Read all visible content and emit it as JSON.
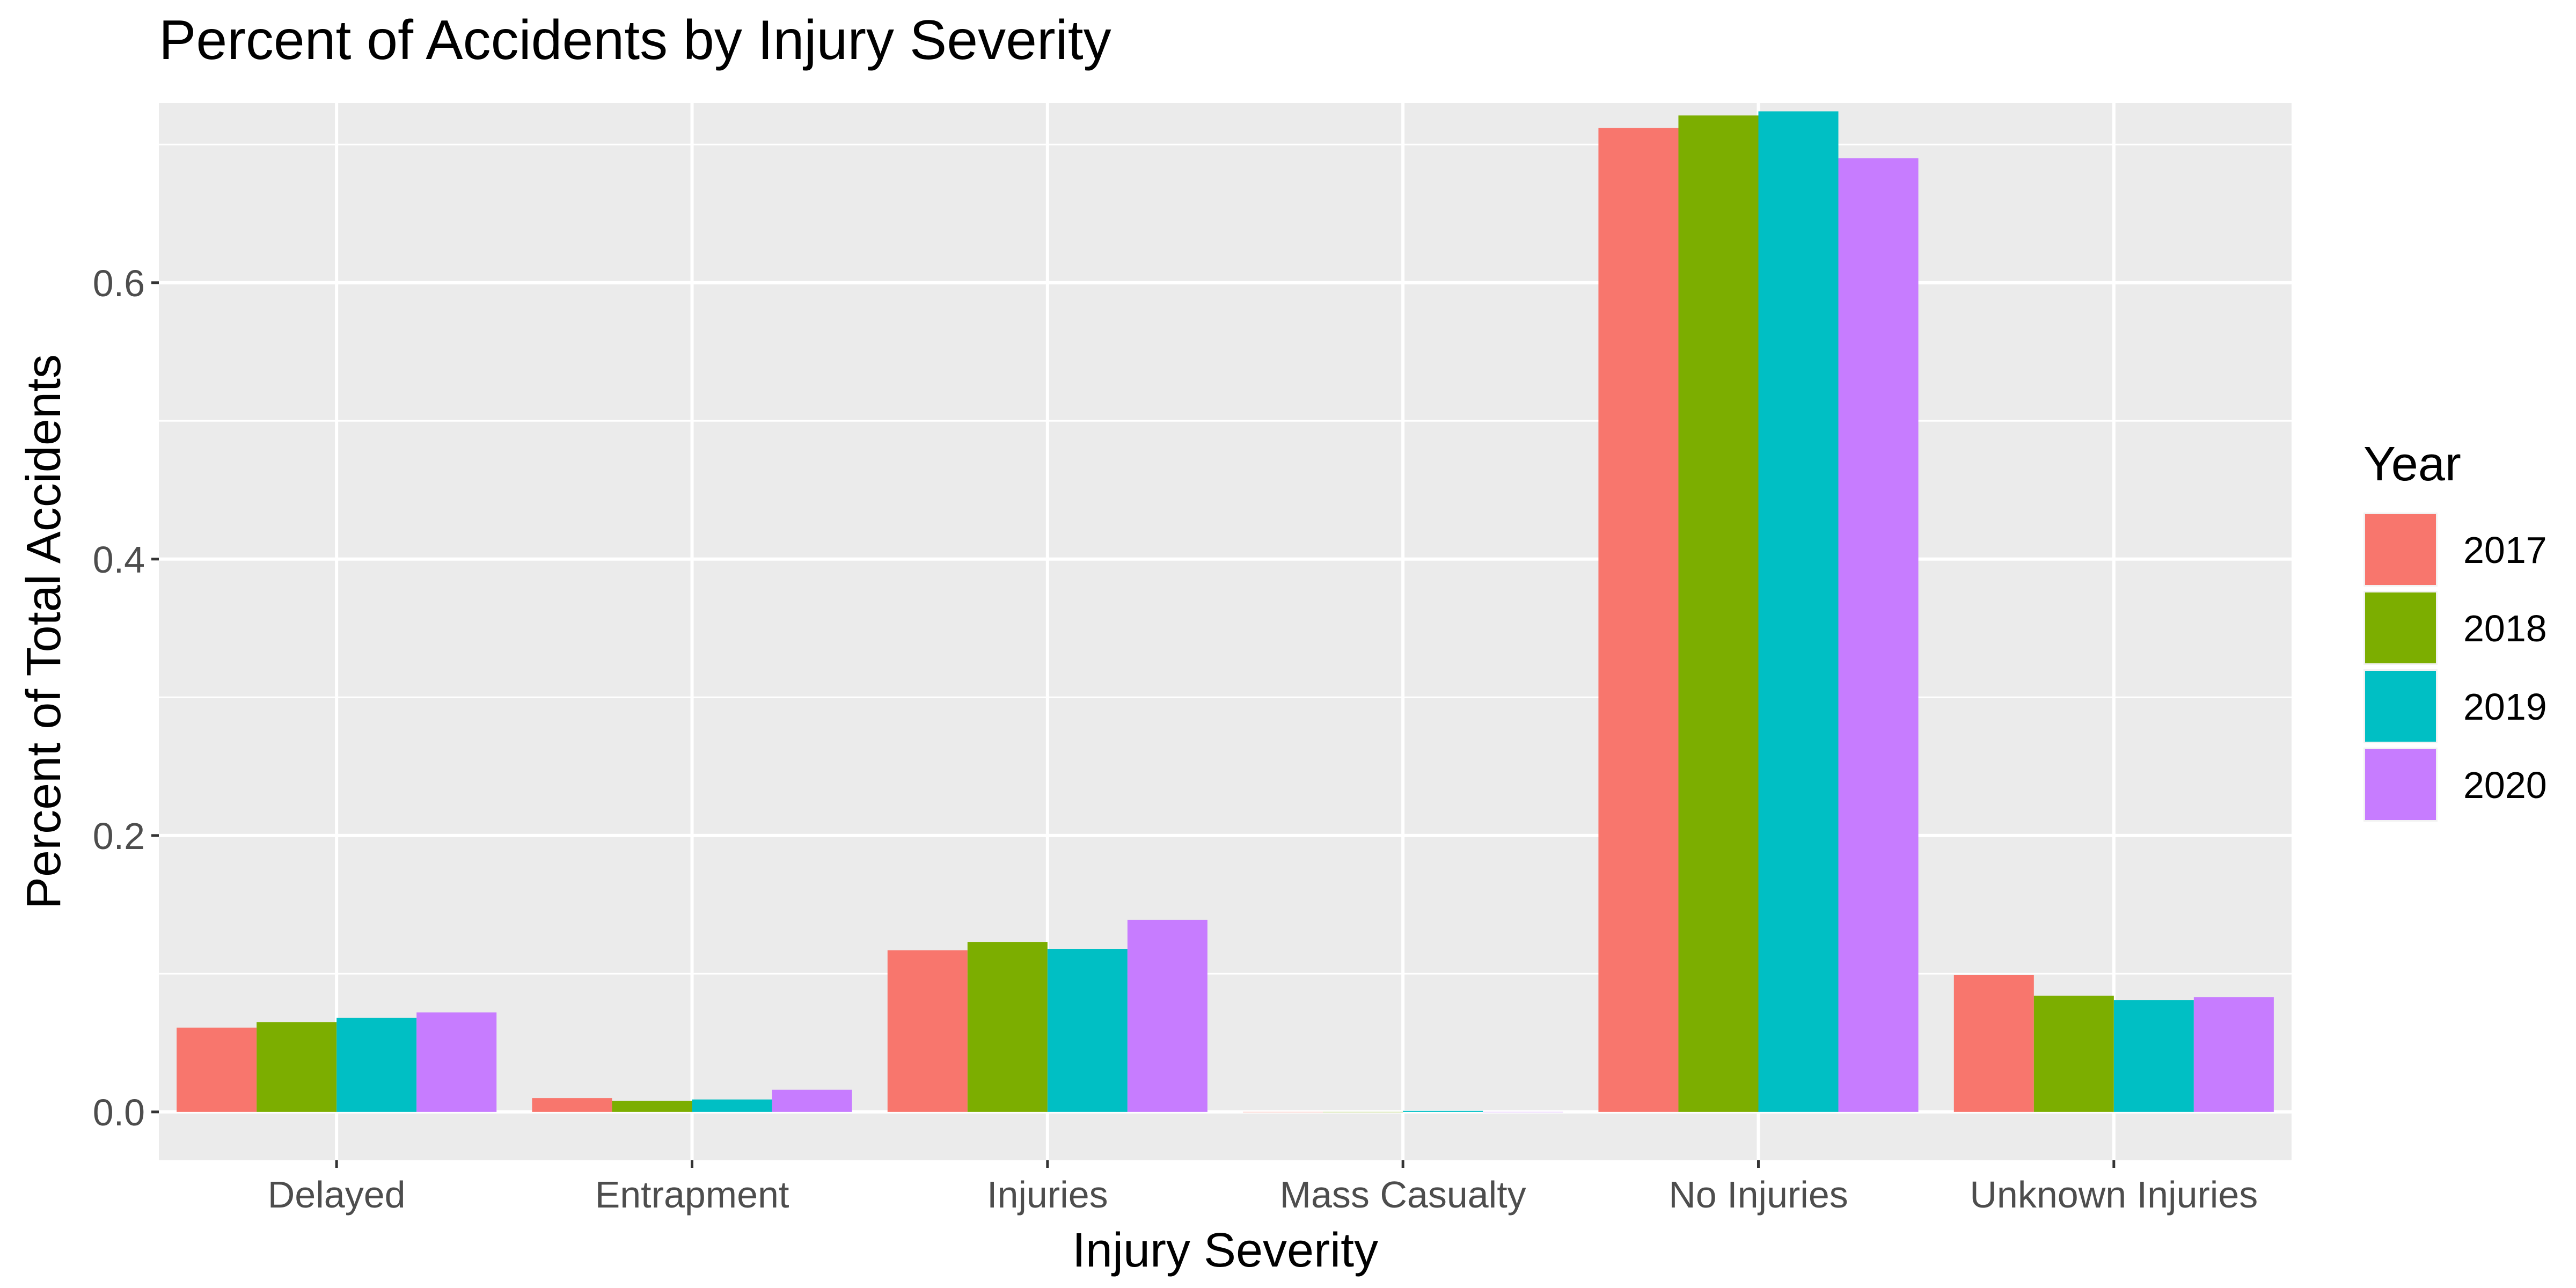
{
  "chart_data": {
    "type": "bar",
    "title": "Percent of Accidents by Injury Severity",
    "xlabel": "Injury Severity",
    "ylabel": "Percent of Total Accidents",
    "ylim": [
      -0.035,
      0.73
    ],
    "yticks": [
      0.0,
      0.2,
      0.4,
      0.6
    ],
    "ytick_labels": [
      "0.0",
      "0.2",
      "0.4",
      "0.6"
    ],
    "grid": true,
    "legend": {
      "title": "Year",
      "position": "right"
    },
    "categories": [
      "Delayed",
      "Entrapment",
      "Injuries",
      "Mass Casualty",
      "No Injuries",
      "Unknown Injuries"
    ],
    "series": [
      {
        "name": "2017",
        "color": "#F8766D",
        "values": [
          0.061,
          0.01,
          0.117,
          0.0,
          0.712,
          0.099
        ]
      },
      {
        "name": "2018",
        "color": "#7CAE00",
        "values": [
          0.065,
          0.008,
          0.123,
          0.0,
          0.721,
          0.084
        ]
      },
      {
        "name": "2019",
        "color": "#00BFC4",
        "values": [
          0.068,
          0.009,
          0.118,
          0.0008,
          0.724,
          0.081
        ]
      },
      {
        "name": "2020",
        "color": "#C77CFF",
        "values": [
          0.072,
          0.016,
          0.139,
          0.0,
          0.69,
          0.083
        ]
      }
    ]
  }
}
